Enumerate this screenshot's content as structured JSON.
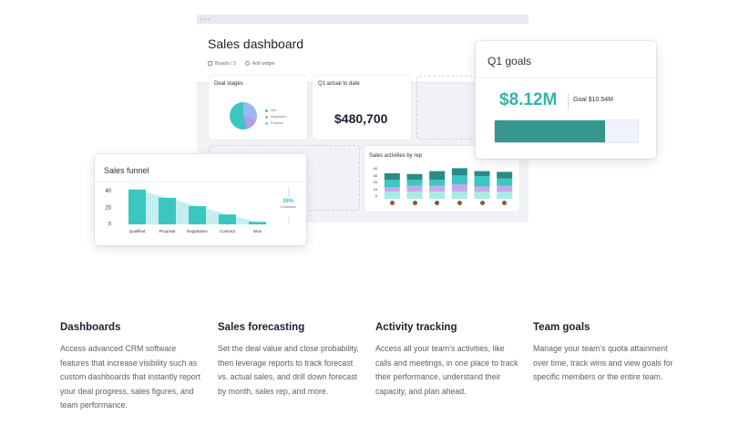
{
  "dashboard": {
    "title": "Sales dashboard",
    "toolbar": {
      "boards": "Boards / 3",
      "add_widget": "Add widget"
    }
  },
  "deal_stages": {
    "title": "Deal stages",
    "legend": [
      "Win",
      "Negotiation",
      "Proposal"
    ],
    "colors": [
      "#3ac7c1",
      "#b89ae6",
      "#9bb8f0"
    ]
  },
  "q1_actual": {
    "title": "Q1 actual to date",
    "value": "$480,700"
  },
  "sales_activities": {
    "title": "Sales activities by rep",
    "y_ticks": [
      "40",
      "30",
      "20",
      "10",
      "0"
    ],
    "colors": [
      "#a7ebe6",
      "#c6a9ec",
      "#3ac7c1",
      "#2a8b86"
    ]
  },
  "q1_goals": {
    "title": "Q1 goals",
    "value": "$8.12M",
    "goal_label": "Goal $10.54M",
    "progress": 0.77
  },
  "sales_funnel": {
    "title": "Sales funnel",
    "y_ticks": [
      "40",
      "20",
      "0"
    ],
    "conversion_value": "38%",
    "conversion_label": "Conversion"
  },
  "chart_data": [
    {
      "type": "bar",
      "title": "Sales funnel",
      "categories": [
        "Qualified",
        "Proposal",
        "Negotiation",
        "Contract",
        "Won"
      ],
      "values": [
        42,
        32,
        22,
        12,
        3
      ],
      "ylim": [
        0,
        45
      ],
      "yticks": [
        0,
        20,
        40
      ],
      "annotation": "38% Conversion"
    },
    {
      "type": "bar",
      "title": "Sales activities by rep",
      "categories": [
        "",
        "",
        "",
        "",
        "",
        ""
      ],
      "series": [
        {
          "values": [
            10,
            10,
            10,
            10,
            10,
            10
          ]
        },
        {
          "values": [
            6,
            8,
            8,
            10,
            7,
            8
          ]
        },
        {
          "values": [
            10,
            8,
            8,
            12,
            14,
            10
          ]
        },
        {
          "values": [
            9,
            8,
            12,
            10,
            7,
            9
          ]
        }
      ],
      "ylim": [
        0,
        45
      ],
      "yticks": [
        0,
        10,
        20,
        30,
        40
      ]
    }
  ],
  "features": [
    {
      "title": "Dashboards",
      "desc": "Access advanced CRM software features that increase visibility such as custom dashboards that instantly report your deal progress, sales figures, and team performance."
    },
    {
      "title": "Sales forecasting",
      "desc": "Set the deal value and close probability, then leverage reports to track forecast vs. actual sales, and drill down forecast by month, sales rep, and more."
    },
    {
      "title": "Activity tracking",
      "desc": "Access all your team’s activities, like calls and meetings, in one place to track their performance, understand their capacity, and plan ahead."
    },
    {
      "title": "Team goals",
      "desc": "Manage your team’s quota attainment over time, track wins and view goals for specific members or the entire team."
    }
  ]
}
